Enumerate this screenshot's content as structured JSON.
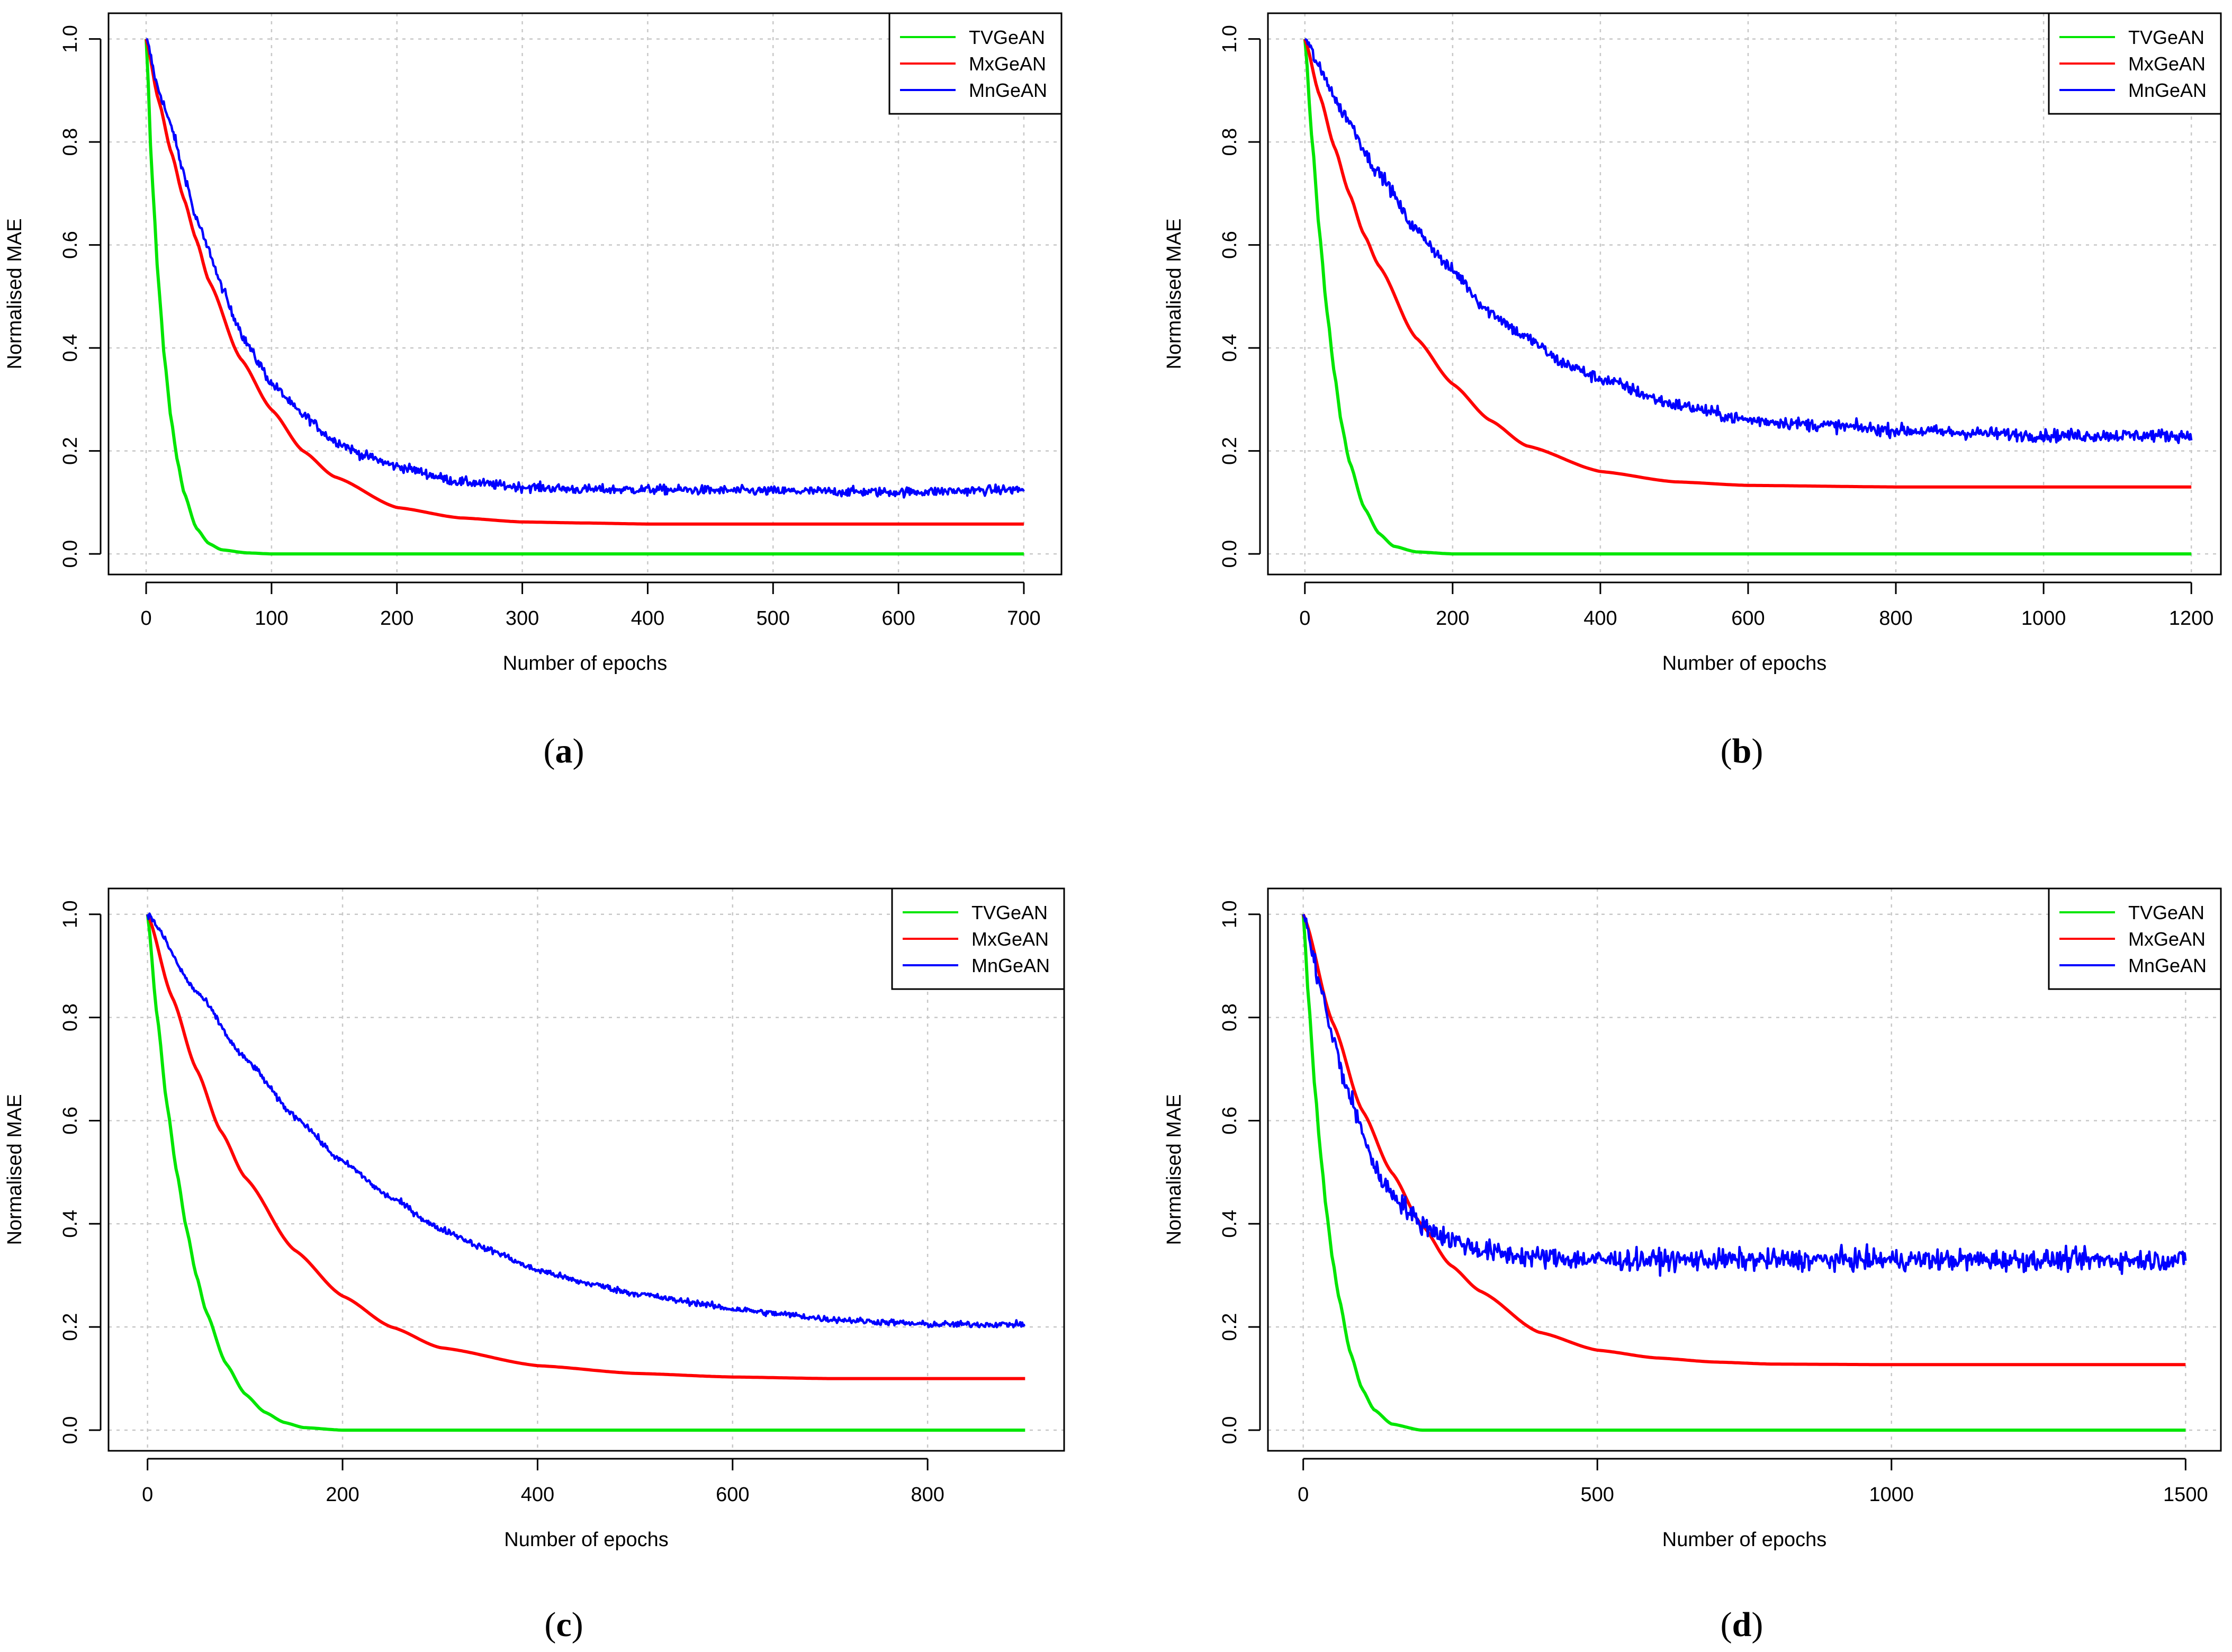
{
  "chart_data": [
    {
      "type": "line",
      "caption": "a",
      "xlabel": "Number of epochs",
      "ylabel": "Normalised MAE",
      "xlim": [
        -30,
        730
      ],
      "ylim": [
        -0.04,
        1.05
      ],
      "xticks": [
        "0",
        "100",
        "200",
        "300",
        "400",
        "500",
        "600",
        "700"
      ],
      "yticks": [
        "0.0",
        "0.2",
        "0.4",
        "0.6",
        "0.8",
        "1.0"
      ],
      "legend": "top-right",
      "grid": true,
      "series": [
        {
          "name": "TVGeAN",
          "color": "#00e600",
          "x": [
            0,
            5,
            10,
            15,
            20,
            25,
            30,
            40,
            50,
            60,
            80,
            100,
            200,
            300,
            400,
            500,
            600,
            700
          ],
          "values": [
            1.0,
            0.72,
            0.52,
            0.37,
            0.26,
            0.18,
            0.12,
            0.05,
            0.02,
            0.008,
            0.002,
            0.0,
            0.0,
            0.0,
            0.0,
            0.0,
            0.0,
            0.0
          ]
        },
        {
          "name": "MxGeAN",
          "color": "#ff0000",
          "x": [
            0,
            10,
            20,
            30,
            40,
            50,
            75,
            100,
            125,
            150,
            200,
            250,
            300,
            350,
            400,
            500,
            600,
            700
          ],
          "values": [
            1.0,
            0.88,
            0.78,
            0.69,
            0.61,
            0.53,
            0.38,
            0.28,
            0.2,
            0.15,
            0.09,
            0.07,
            0.062,
            0.06,
            0.058,
            0.058,
            0.058,
            0.058
          ]
        },
        {
          "name": "MnGeAN",
          "color": "#0000ff",
          "noise": 0.009,
          "x": [
            0,
            10,
            20,
            30,
            40,
            50,
            60,
            70,
            80,
            90,
            100,
            125,
            150,
            175,
            200,
            250,
            300,
            350,
            400,
            500,
            600,
            700
          ],
          "values": [
            1.0,
            0.9,
            0.83,
            0.74,
            0.65,
            0.59,
            0.52,
            0.46,
            0.41,
            0.37,
            0.33,
            0.27,
            0.22,
            0.19,
            0.17,
            0.14,
            0.13,
            0.125,
            0.125,
            0.122,
            0.12,
            0.125
          ]
        }
      ]
    },
    {
      "type": "line",
      "caption": "b",
      "xlabel": "Number of epochs",
      "ylabel": "Normalised MAE",
      "xlim": [
        -50,
        1240
      ],
      "ylim": [
        -0.04,
        1.05
      ],
      "xticks": [
        "0",
        "200",
        "400",
        "600",
        "800",
        "1000",
        "1200"
      ],
      "yticks": [
        "0.0",
        "0.2",
        "0.4",
        "0.6",
        "0.8",
        "1.0"
      ],
      "legend": "top-right",
      "grid": true,
      "series": [
        {
          "name": "TVGeAN",
          "color": "#00e600",
          "x": [
            0,
            10,
            20,
            30,
            40,
            50,
            60,
            80,
            100,
            120,
            150,
            200,
            400,
            800,
            1200
          ],
          "values": [
            1.0,
            0.8,
            0.62,
            0.47,
            0.35,
            0.25,
            0.18,
            0.09,
            0.04,
            0.015,
            0.004,
            0.0,
            0.0,
            0.0,
            0.0
          ]
        },
        {
          "name": "MxGeAN",
          "color": "#ff0000",
          "x": [
            0,
            20,
            40,
            60,
            80,
            100,
            150,
            200,
            250,
            300,
            400,
            500,
            600,
            800,
            1000,
            1200
          ],
          "values": [
            1.0,
            0.89,
            0.79,
            0.7,
            0.62,
            0.56,
            0.42,
            0.33,
            0.26,
            0.21,
            0.16,
            0.14,
            0.133,
            0.13,
            0.13,
            0.13
          ]
        },
        {
          "name": "MnGeAN",
          "color": "#0000ff",
          "noise": 0.012,
          "x": [
            0,
            25,
            50,
            100,
            150,
            200,
            250,
            300,
            350,
            400,
            500,
            600,
            700,
            800,
            900,
            1000,
            1100,
            1200
          ],
          "values": [
            1.0,
            0.93,
            0.86,
            0.74,
            0.63,
            0.55,
            0.47,
            0.42,
            0.37,
            0.34,
            0.29,
            0.26,
            0.25,
            0.24,
            0.235,
            0.23,
            0.23,
            0.23
          ]
        }
      ]
    },
    {
      "type": "line",
      "caption": "c",
      "xlabel": "Number of epochs",
      "ylabel": "Normalised MAE",
      "xlim": [
        -40,
        940
      ],
      "ylim": [
        -0.04,
        1.05
      ],
      "xticks": [
        "0",
        "200",
        "400",
        "600",
        "800"
      ],
      "yticks": [
        "0.0",
        "0.2",
        "0.4",
        "0.6",
        "0.8",
        "1.0"
      ],
      "legend": "top-right",
      "grid": true,
      "series": [
        {
          "name": "TVGeAN",
          "color": "#00e600",
          "x": [
            0,
            10,
            20,
            30,
            40,
            50,
            60,
            80,
            100,
            120,
            140,
            160,
            200,
            400,
            600,
            900
          ],
          "values": [
            1.0,
            0.8,
            0.63,
            0.5,
            0.39,
            0.3,
            0.23,
            0.13,
            0.07,
            0.035,
            0.015,
            0.005,
            0.0,
            0.0,
            0.0,
            0.0
          ]
        },
        {
          "name": "MxGeAN",
          "color": "#ff0000",
          "x": [
            0,
            25,
            50,
            75,
            100,
            150,
            200,
            250,
            300,
            400,
            500,
            600,
            700,
            800,
            900
          ],
          "values": [
            1.0,
            0.84,
            0.7,
            0.58,
            0.49,
            0.35,
            0.26,
            0.2,
            0.16,
            0.125,
            0.11,
            0.103,
            0.1,
            0.1,
            0.1
          ]
        },
        {
          "name": "MnGeAN",
          "color": "#0000ff",
          "noise": 0.006,
          "x": [
            0,
            50,
            100,
            150,
            200,
            250,
            300,
            350,
            400,
            450,
            500,
            550,
            600,
            650,
            700,
            750,
            800,
            850,
            900
          ],
          "values": [
            1.0,
            0.85,
            0.72,
            0.61,
            0.52,
            0.45,
            0.39,
            0.35,
            0.31,
            0.285,
            0.265,
            0.25,
            0.235,
            0.225,
            0.215,
            0.21,
            0.205,
            0.205,
            0.205
          ]
        }
      ]
    },
    {
      "type": "line",
      "caption": "d",
      "xlabel": "Number of epochs",
      "ylabel": "Normalised MAE",
      "xlim": [
        -60,
        1560
      ],
      "ylim": [
        -0.04,
        1.05
      ],
      "xticks": [
        "0",
        "500",
        "1000",
        "1500"
      ],
      "yticks": [
        "0.0",
        "0.2",
        "0.4",
        "0.6",
        "0.8",
        "1.0"
      ],
      "legend": "top-right",
      "grid": true,
      "series": [
        {
          "name": "TVGeAN",
          "color": "#00e600",
          "x": [
            0,
            10,
            20,
            30,
            40,
            50,
            60,
            80,
            100,
            120,
            150,
            200,
            500,
            1000,
            1500
          ],
          "values": [
            1.0,
            0.82,
            0.66,
            0.53,
            0.42,
            0.33,
            0.26,
            0.15,
            0.08,
            0.04,
            0.012,
            0.0,
            0.0,
            0.0,
            0.0
          ]
        },
        {
          "name": "MxGeAN",
          "color": "#ff0000",
          "x": [
            0,
            50,
            100,
            150,
            200,
            250,
            300,
            400,
            500,
            600,
            700,
            800,
            1000,
            1200,
            1500
          ],
          "values": [
            1.0,
            0.79,
            0.62,
            0.5,
            0.4,
            0.32,
            0.27,
            0.19,
            0.155,
            0.14,
            0.132,
            0.128,
            0.127,
            0.127,
            0.127
          ]
        },
        {
          "name": "MnGeAN",
          "color": "#0000ff",
          "noise": 0.02,
          "x": [
            0,
            25,
            50,
            75,
            100,
            125,
            150,
            200,
            250,
            300,
            350,
            400,
            500,
            700,
            900,
            1100,
            1300,
            1500
          ],
          "values": [
            1.0,
            0.88,
            0.76,
            0.66,
            0.58,
            0.5,
            0.46,
            0.4,
            0.37,
            0.35,
            0.34,
            0.335,
            0.33,
            0.33,
            0.33,
            0.33,
            0.33,
            0.33
          ]
        }
      ]
    }
  ]
}
